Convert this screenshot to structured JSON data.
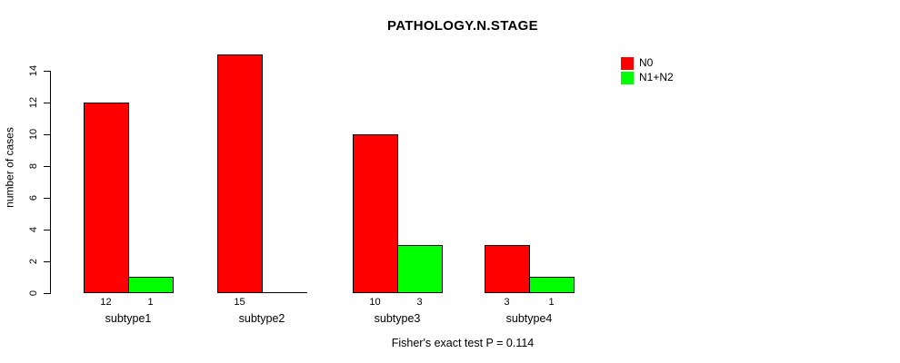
{
  "chart_data": {
    "type": "bar",
    "title": "PATHOLOGY.N.STAGE",
    "ylabel": "number of cases",
    "xlabel": "",
    "categories": [
      "subtype1",
      "subtype2",
      "subtype3",
      "subtype4"
    ],
    "series": [
      {
        "name": "N0",
        "color": "#ff0000",
        "values": [
          12,
          15,
          10,
          3
        ]
      },
      {
        "name": "N1+N2",
        "color": "#00ff00",
        "values": [
          1,
          0,
          3,
          1
        ]
      }
    ],
    "value_labels": [
      [
        "12",
        "1"
      ],
      [
        "15",
        ""
      ],
      [
        "10",
        "3"
      ],
      [
        "3",
        "1"
      ]
    ],
    "yticks": [
      0,
      2,
      4,
      6,
      8,
      10,
      12,
      14
    ],
    "ylim": [
      0,
      14
    ],
    "grid": false,
    "legend_position": "top-right",
    "footnote": "Fisher's exact test P = 0.114",
    "bar_border_color": "#000000",
    "text_color": "#000000",
    "background_color": "#ffffff"
  }
}
